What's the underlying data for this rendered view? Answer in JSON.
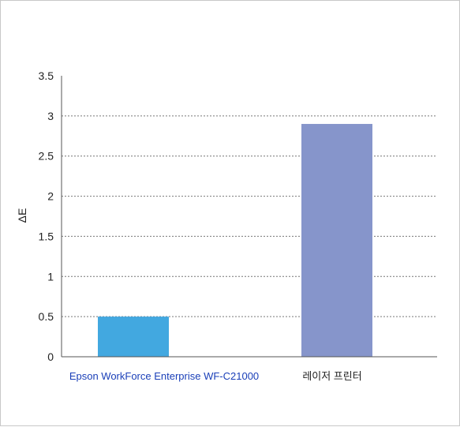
{
  "chart_data": {
    "type": "bar",
    "categories": [
      "Epson WorkForce Enterprise WF-C21000",
      "레이저 프린터"
    ],
    "values": [
      0.5,
      2.9
    ],
    "bar_colors": [
      "#42a8e0",
      "#8695cb"
    ],
    "category_label_colors": [
      "#1a3fb8",
      "#222222"
    ],
    "title": "",
    "xlabel": "",
    "ylabel": "ΔE",
    "ylim": [
      0,
      3.5
    ],
    "yticks": [
      "0",
      "0.5",
      "1",
      "1.5",
      "2",
      "2.5",
      "3",
      "3.5"
    ],
    "grid": "dotted horizontal"
  }
}
